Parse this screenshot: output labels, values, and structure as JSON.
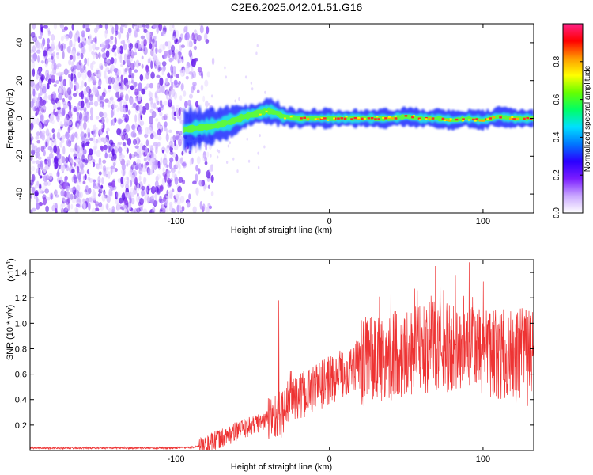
{
  "title": "C2E6.2025.042.01.51.G16",
  "colors": {
    "snr_line": "#ee3333",
    "spectrogram_sparse": "#8a3ff0",
    "spectrogram_core_low": "#1a2cff",
    "spectrogram_core_mid": "#22e8e8",
    "spectrogram_core_high": "#ff2a2a"
  },
  "chart_data": [
    {
      "type": "heatmap",
      "xlabel": "Height of straight line (km)",
      "ylabel": "Frequency (Hz)",
      "xlim": [
        -195,
        133
      ],
      "ylim": [
        -50,
        50
      ],
      "x_ticks": [
        -100,
        0,
        100
      ],
      "x_tick_labels": [
        "-100",
        "0",
        "100"
      ],
      "y_ticks": [
        -40,
        -20,
        0,
        20,
        40
      ],
      "y_tick_labels": [
        "-40",
        "-20",
        "0",
        "20",
        "40"
      ],
      "colorbar": {
        "label": "Normalized spectral amplitude",
        "range": [
          0.0,
          1.0
        ],
        "ticks": [
          0.0,
          0.2,
          0.4,
          0.6,
          0.8
        ],
        "tick_labels": [
          "0.0",
          "0.2",
          "0.4",
          "0.6",
          "0.8"
        ],
        "colormap": [
          "#ffffff",
          "#c9a6ff",
          "#7a1cff",
          "#2a00ff",
          "#0077ff",
          "#00e0ff",
          "#00ff66",
          "#66ff00",
          "#ffff00",
          "#ff9900",
          "#ff0000",
          "#ff2288"
        ]
      },
      "ridge": {
        "name": "",
        "x": [
          -95,
          -85,
          -75,
          -65,
          -55,
          -45,
          -40,
          -35,
          -30,
          -20,
          -10,
          0,
          10,
          20,
          30,
          40,
          50,
          60,
          70,
          80,
          90,
          100,
          110,
          120,
          133
        ],
        "y": [
          -6,
          -5,
          -4,
          -2,
          1,
          3,
          4,
          3,
          1,
          0,
          0,
          0,
          0,
          0,
          0,
          0,
          1,
          0,
          0,
          -1,
          0,
          -1,
          1,
          0,
          0
        ]
      },
      "noise_region_x": [
        -195,
        -80
      ]
    },
    {
      "type": "line",
      "xlabel": "Height of straight line (km)",
      "ylabel": "SNR (10 * v/v)",
      "y_multiplier": "(x10",
      "y_multiplier_exp": "4",
      "xlim": [
        -195,
        133
      ],
      "ylim": [
        0,
        1.5
      ],
      "x_ticks": [
        -100,
        0,
        100
      ],
      "x_tick_labels": [
        "-100",
        "0",
        "100"
      ],
      "y_ticks": [
        0.2,
        0.4,
        0.6,
        0.8,
        1.0,
        1.2,
        1.4
      ],
      "y_tick_labels": [
        "0.2",
        "0.4",
        "0.6",
        "0.8",
        "1.0",
        "1.2",
        "1.4"
      ],
      "series": [
        {
          "name": "",
          "x": [
            -195,
            -150,
            -100,
            -85,
            -80,
            -70,
            -60,
            -50,
            -40,
            -30,
            -25,
            -20,
            -10,
            0,
            10,
            20,
            30,
            40,
            50,
            60,
            70,
            80,
            90,
            100,
            110,
            120,
            133
          ],
          "values": [
            0.02,
            0.02,
            0.02,
            0.03,
            0.04,
            0.1,
            0.15,
            0.2,
            0.25,
            0.3,
            0.45,
            0.4,
            0.5,
            0.55,
            0.62,
            0.68,
            0.72,
            0.75,
            0.78,
            0.8,
            0.82,
            0.8,
            0.82,
            0.78,
            0.76,
            0.75,
            0.78
          ],
          "peaks": [
            {
              "x": -33,
              "y": 1.18
            },
            {
              "x": 40,
              "y": 1.32
            },
            {
              "x": 69,
              "y": 1.45
            },
            {
              "x": 72,
              "y": 1.42
            },
            {
              "x": 82,
              "y": 1.38
            },
            {
              "x": 91,
              "y": 1.48
            }
          ]
        }
      ]
    }
  ]
}
